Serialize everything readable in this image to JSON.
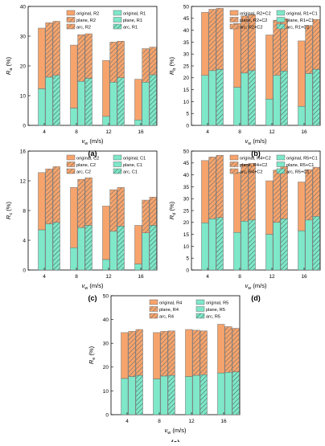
{
  "colors": {
    "upper": "#f7a46c",
    "lower": "#7ee8c9",
    "edge": "#6b6b6b",
    "hatch": "#555555"
  },
  "chart_data": [
    {
      "panel_label": "(a)",
      "type": "bar",
      "stacked": true,
      "categories": [
        "4",
        "8",
        "12",
        "16"
      ],
      "xlabel": "v_w (m/s)",
      "ylabel": "R_a (%)",
      "ylim": [
        0,
        40
      ],
      "yticks": [
        0,
        10,
        20,
        30,
        40
      ],
      "legend": "top-right",
      "legend_entries": [
        "original, R2",
        "original, R1",
        "plane, R2",
        "plane, R1",
        "arc, R2",
        "arc, R1"
      ],
      "groups": [
        {
          "name": "original",
          "lower_name": "original, R1",
          "upper_name": "original, R2",
          "lower": [
            12.3,
            5.8,
            3.0,
            1.8
          ],
          "total": [
            32.7,
            27.0,
            21.8,
            15.5
          ]
        },
        {
          "name": "plane",
          "lower_name": "plane, R1",
          "upper_name": "plane, R2",
          "lower": [
            16.2,
            14.8,
            14.5,
            14.5
          ],
          "total": [
            34.5,
            30.5,
            28.0,
            25.8
          ]
        },
        {
          "name": "arc",
          "lower_name": "arc, R1",
          "upper_name": "arc, R2",
          "lower": [
            16.8,
            15.8,
            16.0,
            17.0
          ],
          "total": [
            35.0,
            30.8,
            28.3,
            26.3
          ]
        }
      ]
    },
    {
      "panel_label": "(b)",
      "type": "bar",
      "stacked": true,
      "categories": [
        "4",
        "8",
        "12",
        "16"
      ],
      "xlabel": "v_w (m/s)",
      "ylabel": "R_b (%)",
      "ylim": [
        0,
        50
      ],
      "yticks": [
        0,
        5,
        10,
        15,
        20,
        25,
        30,
        35,
        40,
        45,
        50
      ],
      "legend": "top-right",
      "legend_entries": [
        "original, R2+C2",
        "original, R1+C1",
        "plane, R2+C2",
        "plane, R1+C1",
        "arc, R2+C2",
        "arc, R1+C1"
      ],
      "groups": [
        {
          "name": "original",
          "lower_name": "original, R1+C1",
          "upper_name": "original, R2+C2",
          "lower": [
            21.0,
            16.0,
            11.0,
            8.0
          ],
          "total": [
            47.5,
            42.8,
            38.0,
            35.5
          ]
        },
        {
          "name": "plane",
          "lower_name": "plane, R1+C1",
          "upper_name": "plane, R2+C2",
          "lower": [
            23.0,
            22.0,
            21.0,
            21.8
          ],
          "total": [
            48.8,
            46.0,
            44.2,
            42.0
          ]
        },
        {
          "name": "arc",
          "lower_name": "arc, R1+C1",
          "upper_name": "arc, R2+C2",
          "lower": [
            23.5,
            23.0,
            22.8,
            23.5
          ],
          "total": [
            49.2,
            46.5,
            44.8,
            44.5
          ]
        }
      ]
    },
    {
      "panel_label": "(c)",
      "type": "bar",
      "stacked": true,
      "categories": [
        "4",
        "8",
        "12",
        "16"
      ],
      "xlabel": "v_w (m/s)",
      "ylabel": "R_c (%)",
      "ylim": [
        0,
        16
      ],
      "yticks": [
        0,
        4,
        8,
        12,
        16
      ],
      "legend": "top-right",
      "legend_entries": [
        "original, C2",
        "original, C1",
        "plane, C2",
        "plane, C1",
        "arc, C2",
        "arc, C1"
      ],
      "groups": [
        {
          "name": "original",
          "lower_name": "original, C1",
          "upper_name": "original, C2",
          "lower": [
            5.4,
            3.0,
            1.4,
            0.8
          ],
          "total": [
            13.1,
            11.1,
            8.6,
            6.0
          ]
        },
        {
          "name": "plane",
          "lower_name": "plane, C1",
          "upper_name": "plane, C2",
          "lower": [
            6.2,
            5.7,
            5.2,
            5.0
          ],
          "total": [
            13.6,
            12.2,
            10.8,
            9.4
          ]
        },
        {
          "name": "arc",
          "lower_name": "arc, C1",
          "upper_name": "arc, C2",
          "lower": [
            6.4,
            6.0,
            5.9,
            6.0
          ],
          "total": [
            13.9,
            12.4,
            11.1,
            9.8
          ]
        }
      ]
    },
    {
      "panel_label": "(d)",
      "type": "bar",
      "stacked": true,
      "categories": [
        "4",
        "8",
        "12",
        "16"
      ],
      "xlabel": "v_w (m/s)",
      "ylabel": "R_d (%)",
      "ylim": [
        0,
        50
      ],
      "yticks": [
        0,
        5,
        10,
        15,
        20,
        25,
        30,
        35,
        40,
        45,
        50
      ],
      "legend": "top-right",
      "legend_entries": [
        "original, R4+C2",
        "original, R5+C1",
        "plane, R4+C2",
        "plane, R5+C1",
        "arc, R4+C2",
        "arc, R5+C1"
      ],
      "groups": [
        {
          "name": "original",
          "lower_name": "original, R5+C1",
          "upper_name": "original, R4+C2",
          "lower": [
            19.8,
            15.8,
            15.0,
            16.5
          ],
          "total": [
            46.0,
            41.0,
            37.5,
            37.0
          ]
        },
        {
          "name": "plane",
          "lower_name": "plane, R5+C1",
          "upper_name": "plane, R4+C2",
          "lower": [
            21.5,
            20.5,
            20.0,
            21.0
          ],
          "total": [
            47.5,
            44.5,
            42.0,
            42.2
          ]
        },
        {
          "name": "arc",
          "lower_name": "arc, R5+C1",
          "upper_name": "arc, R4+C2",
          "lower": [
            22.0,
            21.0,
            21.5,
            22.5
          ],
          "total": [
            48.2,
            44.8,
            43.5,
            43.2
          ]
        }
      ]
    },
    {
      "panel_label": "(e)",
      "type": "bar",
      "stacked": true,
      "categories": [
        "4",
        "8",
        "12",
        "16"
      ],
      "xlabel": "v_w (m/s)",
      "ylabel": "R_e (%)",
      "ylim": [
        0,
        50
      ],
      "yticks": [
        0,
        10,
        20,
        30,
        40,
        50
      ],
      "legend": "top-right",
      "legend_entries": [
        "original, R4",
        "original, R5",
        "plane, R4",
        "plane, R5",
        "arc, R4",
        "arc, R5"
      ],
      "groups": [
        {
          "name": "original",
          "lower_name": "original, R5",
          "upper_name": "original, R4",
          "lower": [
            15.2,
            15.0,
            16.0,
            17.5
          ],
          "total": [
            34.5,
            34.5,
            35.8,
            38.0
          ]
        },
        {
          "name": "plane",
          "lower_name": "plane, R5",
          "upper_name": "plane, R4",
          "lower": [
            16.0,
            16.2,
            16.5,
            17.8
          ],
          "total": [
            35.0,
            35.0,
            35.5,
            37.0
          ]
        },
        {
          "name": "arc",
          "lower_name": "arc, R5",
          "upper_name": "arc, R4",
          "lower": [
            16.5,
            16.5,
            16.8,
            18.0
          ],
          "total": [
            35.8,
            35.2,
            35.2,
            36.3
          ]
        }
      ]
    }
  ]
}
